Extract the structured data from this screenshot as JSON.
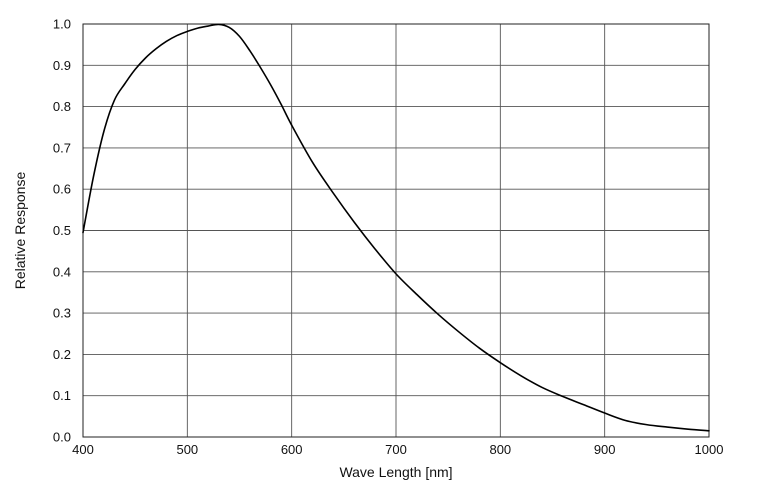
{
  "chart_data": {
    "type": "line",
    "title": "",
    "xlabel": "Wave Length [nm]",
    "ylabel": "Relative Response",
    "xlim": [
      400,
      1000
    ],
    "ylim": [
      0.0,
      1.0
    ],
    "grid": true,
    "xticks": [
      400,
      500,
      600,
      700,
      800,
      900,
      1000
    ],
    "yticks": [
      0.0,
      0.1,
      0.2,
      0.3,
      0.4,
      0.5,
      0.6,
      0.7,
      0.8,
      0.9,
      1.0
    ],
    "xtick_labels": [
      "400",
      "500",
      "600",
      "700",
      "800",
      "900",
      "1000"
    ],
    "ytick_labels": [
      "0.0",
      "0.1",
      "0.2",
      "0.3",
      "0.4",
      "0.5",
      "0.6",
      "0.7",
      "0.8",
      "0.9",
      "1.0"
    ],
    "series": [
      {
        "color": "#000000",
        "x": [
          400,
          410,
          420,
          430,
          440,
          450,
          460,
          470,
          480,
          490,
          500,
          510,
          520,
          530,
          540,
          550,
          560,
          570,
          580,
          590,
          600,
          620,
          640,
          660,
          680,
          700,
          720,
          740,
          760,
          780,
          800,
          820,
          840,
          860,
          880,
          900,
          920,
          940,
          960,
          980,
          1000
        ],
        "y": [
          0.495,
          0.63,
          0.74,
          0.815,
          0.855,
          0.89,
          0.918,
          0.94,
          0.958,
          0.972,
          0.982,
          0.99,
          0.995,
          0.999,
          0.992,
          0.97,
          0.935,
          0.895,
          0.852,
          0.805,
          0.755,
          0.665,
          0.59,
          0.52,
          0.455,
          0.395,
          0.345,
          0.298,
          0.255,
          0.215,
          0.18,
          0.148,
          0.12,
          0.098,
          0.078,
          0.058,
          0.04,
          0.03,
          0.024,
          0.019,
          0.015
        ]
      }
    ]
  }
}
